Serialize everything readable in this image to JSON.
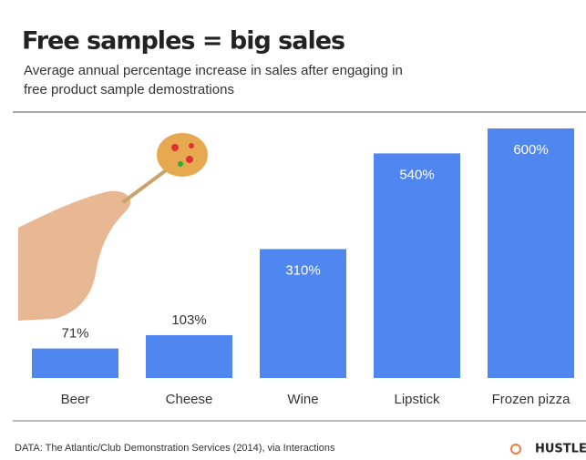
{
  "chart_data": {
    "type": "bar",
    "title": "Free samples = big sales",
    "subtitle": [
      "Average annual percentage increase in sales after engaging in",
      "free product sample demostrations"
    ],
    "categories": [
      "Beer",
      "Cheese",
      "Wine",
      "Lipstick",
      "Frozen pizza"
    ],
    "values": [
      71,
      103,
      310,
      540,
      600
    ],
    "value_labels": [
      "71%",
      "103%",
      "310%",
      "540%",
      "600%"
    ],
    "color": "#4f86f0",
    "source": "DATA: The Atlantic/Club Demonstration Services (2014), via Interactions",
    "brand": "HUSTLE"
  }
}
